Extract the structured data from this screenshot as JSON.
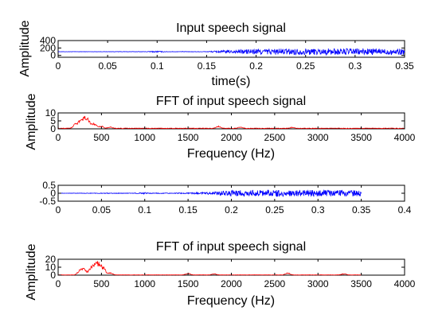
{
  "chart_data": [
    {
      "type": "line",
      "title": "Input speech signal",
      "xlabel": "time(s)",
      "ylabel": "Amplitude",
      "xlim": [
        0,
        0.35
      ],
      "ylim": [
        -50,
        400
      ],
      "xticks": [
        "0",
        "0.05",
        "0.1",
        "0.15",
        "0.2",
        "0.25",
        "0.3",
        "0.35"
      ],
      "yticks": [
        "400",
        "200",
        "0"
      ],
      "grid": false,
      "color": "#0000ff",
      "series": [
        {
          "baseline": 100,
          "envelope": [
            {
              "x": 0.0,
              "amp": 3
            },
            {
              "x": 0.05,
              "amp": 4
            },
            {
              "x": 0.09,
              "amp": 6
            },
            {
              "x": 0.1,
              "amp": 22
            },
            {
              "x": 0.11,
              "amp": 6
            },
            {
              "x": 0.15,
              "amp": 8
            },
            {
              "x": 0.16,
              "amp": 25
            },
            {
              "x": 0.175,
              "amp": 45
            },
            {
              "x": 0.2,
              "amp": 80
            },
            {
              "x": 0.25,
              "amp": 85
            },
            {
              "x": 0.3,
              "amp": 90
            },
            {
              "x": 0.35,
              "amp": 80
            }
          ]
        }
      ]
    },
    {
      "type": "line",
      "title": "FFT of input speech signal",
      "xlabel": "Frequency (Hz)",
      "ylabel": "Amplitude",
      "xlim": [
        0,
        4000
      ],
      "ylim": [
        0,
        10
      ],
      "xticks": [
        "0",
        "500",
        "1000",
        "1500",
        "2000",
        "2500",
        "3000",
        "3500",
        "4000"
      ],
      "yticks": [
        "10",
        "5",
        "0"
      ],
      "grid": false,
      "color": "#ff0000",
      "series": [
        {
          "peaks": [
            {
              "x": 200,
              "y": 2.5
            },
            {
              "x": 250,
              "y": 4
            },
            {
              "x": 300,
              "y": 6.5
            },
            {
              "x": 350,
              "y": 5
            },
            {
              "x": 420,
              "y": 3
            },
            {
              "x": 500,
              "y": 1.5
            },
            {
              "x": 600,
              "y": 0.8
            },
            {
              "x": 1850,
              "y": 1.4
            },
            {
              "x": 2100,
              "y": 0.8
            },
            {
              "x": 2700,
              "y": 0.6
            }
          ]
        }
      ]
    },
    {
      "type": "line",
      "title": "",
      "xlabel": "",
      "ylabel": "",
      "xlim": [
        0,
        0.4
      ],
      "ylim": [
        -0.5,
        0.5
      ],
      "xticks": [
        "0",
        "0.05",
        "0.1",
        "0.15",
        "0.2",
        "0.25",
        "0.3",
        "0.35",
        "0.4"
      ],
      "yticks": [
        "0.5",
        "0",
        "-0.5"
      ],
      "grid": false,
      "color": "#0000ff",
      "series": [
        {
          "baseline": 0,
          "x_end": 0.35,
          "envelope": [
            {
              "x": 0.0,
              "amp": 0.01
            },
            {
              "x": 0.09,
              "amp": 0.02
            },
            {
              "x": 0.1,
              "amp": 0.05
            },
            {
              "x": 0.11,
              "amp": 0.02
            },
            {
              "x": 0.15,
              "amp": 0.03
            },
            {
              "x": 0.175,
              "amp": 0.08
            },
            {
              "x": 0.2,
              "amp": 0.18
            },
            {
              "x": 0.25,
              "amp": 0.2
            },
            {
              "x": 0.3,
              "amp": 0.2
            },
            {
              "x": 0.35,
              "amp": 0.18
            }
          ]
        }
      ]
    },
    {
      "type": "line",
      "title": "FFT of input speech signal",
      "xlabel": "Frequency (Hz)",
      "ylabel": "Amplitude",
      "xlim": [
        0,
        4000
      ],
      "ylim": [
        0,
        20
      ],
      "xticks": [
        "0",
        "500",
        "1000",
        "1500",
        "2000",
        "2500",
        "3000",
        "3500",
        "4000"
      ],
      "yticks": [
        "20",
        "10",
        "0"
      ],
      "grid": false,
      "color": "#ff0000",
      "series": [
        {
          "x_end": 3500,
          "peaks": [
            {
              "x": 250,
              "y": 6
            },
            {
              "x": 300,
              "y": 8
            },
            {
              "x": 380,
              "y": 9
            },
            {
              "x": 430,
              "y": 13
            },
            {
              "x": 470,
              "y": 11
            },
            {
              "x": 520,
              "y": 10
            },
            {
              "x": 600,
              "y": 3
            },
            {
              "x": 1500,
              "y": 2
            },
            {
              "x": 1800,
              "y": 1.5
            },
            {
              "x": 2650,
              "y": 2.5
            },
            {
              "x": 3300,
              "y": 1.5
            }
          ]
        }
      ]
    }
  ]
}
